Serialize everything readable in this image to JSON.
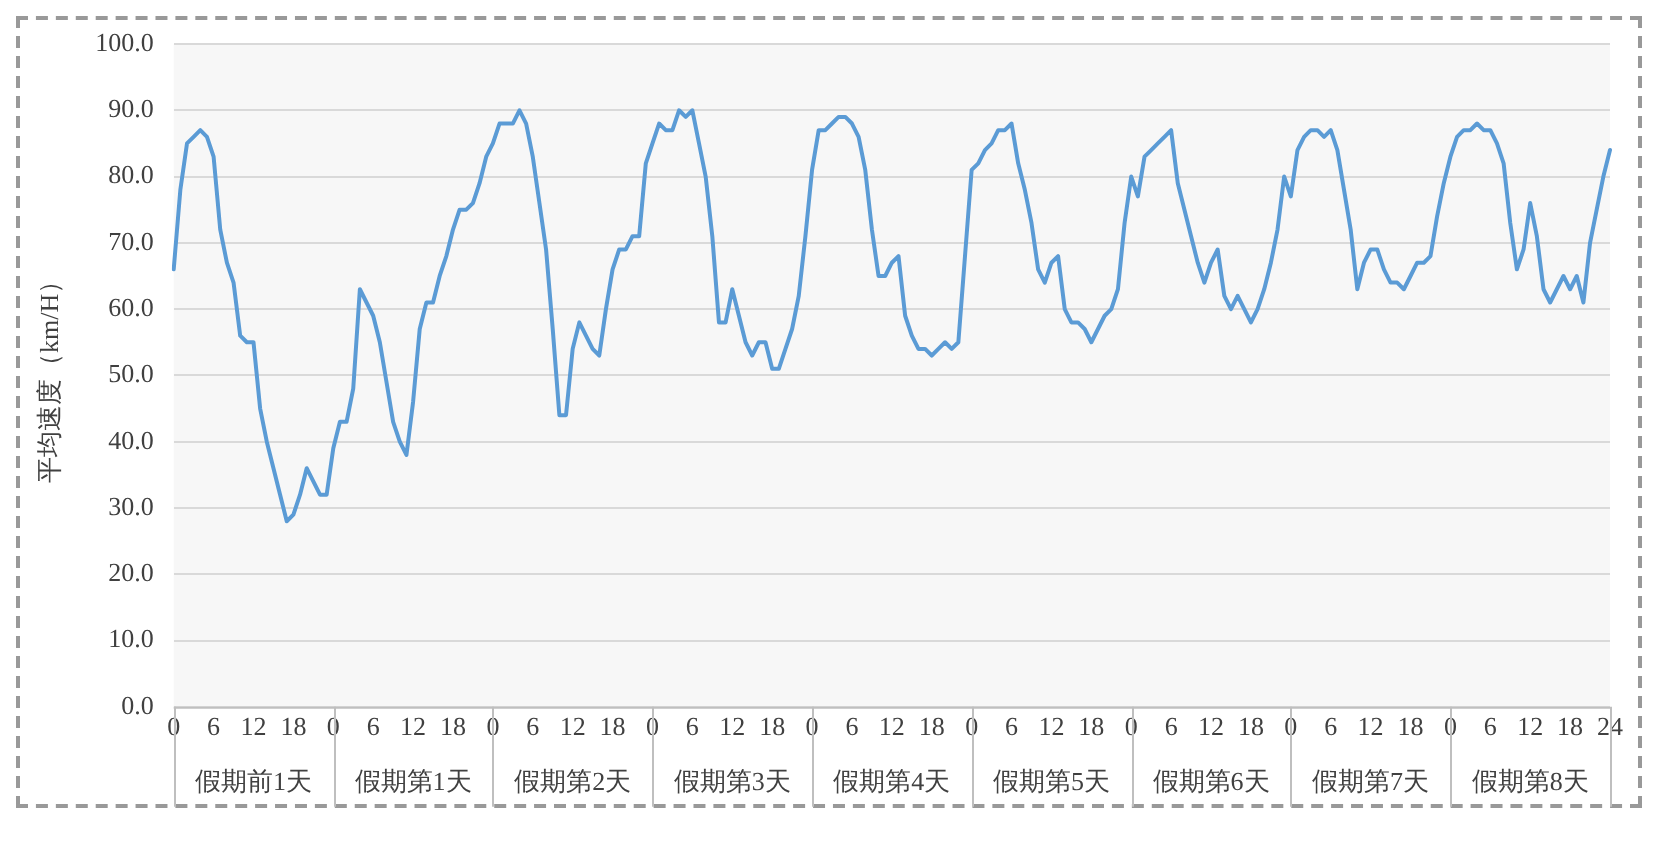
{
  "chart_data": {
    "type": "line",
    "ylabel": "平均速度（km/H）",
    "categories": [
      "0",
      null,
      null,
      null,
      null,
      null,
      "6",
      null,
      null,
      null,
      null,
      null,
      "12",
      null,
      null,
      null,
      null,
      null,
      "18",
      null,
      null,
      null,
      null,
      null,
      "0",
      null,
      null,
      null,
      null,
      null,
      "6",
      null,
      null,
      null,
      null,
      null,
      "12",
      null,
      null,
      null,
      null,
      null,
      "18",
      null,
      null,
      null,
      null,
      null,
      "0",
      null,
      null,
      null,
      null,
      null,
      "6",
      null,
      null,
      null,
      null,
      null,
      "12",
      null,
      null,
      null,
      null,
      null,
      "18",
      null,
      null,
      null,
      null,
      null,
      "0",
      null,
      null,
      null,
      null,
      null,
      "6",
      null,
      null,
      null,
      null,
      null,
      "12",
      null,
      null,
      null,
      null,
      null,
      "18",
      null,
      null,
      null,
      null,
      null,
      "0",
      null,
      null,
      null,
      null,
      null,
      "6",
      null,
      null,
      null,
      null,
      null,
      "12",
      null,
      null,
      null,
      null,
      null,
      "18",
      null,
      null,
      null,
      null,
      null,
      "0",
      null,
      null,
      null,
      null,
      null,
      "6",
      null,
      null,
      null,
      null,
      null,
      "12",
      null,
      null,
      null,
      null,
      null,
      "18",
      null,
      null,
      null,
      null,
      null,
      "0",
      null,
      null,
      null,
      null,
      null,
      "6",
      null,
      null,
      null,
      null,
      null,
      "12",
      null,
      null,
      null,
      null,
      null,
      "18",
      null,
      null,
      null,
      null,
      null,
      "0",
      null,
      null,
      null,
      null,
      null,
      "6",
      null,
      null,
      null,
      null,
      null,
      "12",
      null,
      null,
      null,
      null,
      null,
      "18",
      null,
      null,
      null,
      null,
      null,
      "0",
      null,
      null,
      null,
      null,
      null,
      "6",
      null,
      null,
      null,
      null,
      null,
      "12",
      null,
      null,
      null,
      null,
      null,
      "18",
      null,
      null,
      null,
      null,
      null,
      "24"
    ],
    "ylim": [
      0,
      100
    ],
    "yticks": [
      {
        "value": 0,
        "label": "0.0"
      },
      {
        "value": 10,
        "label": "10.0"
      },
      {
        "value": 20,
        "label": "20.0"
      },
      {
        "value": 30,
        "label": "30.0"
      },
      {
        "value": 40,
        "label": "40.0"
      },
      {
        "value": 50,
        "label": "50.0"
      },
      {
        "value": 60,
        "label": "60.0"
      },
      {
        "value": 70,
        "label": "70.0"
      },
      {
        "value": 80,
        "label": "80.0"
      },
      {
        "value": 90,
        "label": "90.0"
      },
      {
        "value": 100,
        "label": "100.0"
      }
    ],
    "grid": "y",
    "legend": false,
    "marker": "none",
    "line_style": "solid",
    "annotations": [
      "假期前1天",
      "假期第1天",
      "假期第2天",
      "假期第3天",
      "假期第4天",
      "假期第5天",
      "假期第6天",
      "假期第7天",
      "假期第8天"
    ],
    "series": [
      {
        "color": "#5b9bd5",
        "values": [
          66,
          78,
          85,
          86,
          87,
          86,
          83,
          72,
          67,
          64,
          56,
          55,
          55,
          45,
          40,
          36,
          32,
          28,
          29,
          32,
          36,
          34,
          32,
          32,
          39,
          43,
          43,
          48,
          63,
          61,
          59,
          55,
          49,
          43,
          40,
          38,
          46,
          57,
          61,
          61,
          65,
          68,
          72,
          75,
          75,
          76,
          79,
          83,
          85,
          88,
          88,
          88,
          90,
          88,
          83,
          76,
          69,
          57,
          44,
          44,
          54,
          58,
          56,
          54,
          53,
          60,
          66,
          69,
          69,
          71,
          71,
          82,
          85,
          88,
          87,
          87,
          90,
          89,
          90,
          85,
          80,
          71,
          58,
          58,
          63,
          59,
          55,
          53,
          55,
          55,
          51,
          51,
          54,
          57,
          62,
          71,
          81,
          87,
          87,
          88,
          89,
          89,
          88,
          86,
          81,
          72,
          65,
          65,
          67,
          68,
          59,
          56,
          54,
          54,
          53,
          54,
          55,
          54,
          55,
          68,
          81,
          82,
          84,
          85,
          87,
          87,
          88,
          82,
          78,
          73,
          66,
          64,
          67,
          68,
          60,
          58,
          58,
          57,
          55,
          57,
          59,
          60,
          63,
          73,
          80,
          77,
          83,
          84,
          85,
          86,
          87,
          79,
          75,
          71,
          67,
          64,
          67,
          69,
          62,
          60,
          62,
          60,
          58,
          60,
          63,
          67,
          72,
          80,
          77,
          84,
          86,
          87,
          87,
          86,
          87,
          84,
          78,
          72,
          63,
          67,
          69,
          69,
          66,
          64,
          64,
          63,
          65,
          67,
          67,
          68,
          74,
          79,
          83,
          86,
          87,
          87,
          88,
          87,
          87,
          85,
          82,
          73,
          66,
          69,
          76,
          71,
          63,
          61,
          63,
          65,
          63,
          65,
          61,
          70,
          75,
          80,
          84
        ]
      }
    ]
  }
}
